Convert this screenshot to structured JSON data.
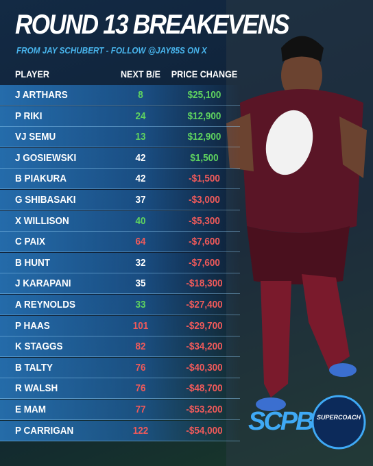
{
  "header": {
    "title": "ROUND 13 BREAKEVENS",
    "subtitle": "FROM JAY SCHUBERT - FOLLOW @JAY85S ON X"
  },
  "table": {
    "columns": [
      "PLAYER",
      "NEXT B/E",
      "PRICE CHANGE"
    ],
    "rows": [
      {
        "player": "J ARTHARS",
        "breakeven": 8,
        "price_change": "$25,100",
        "be_color": "#5fd35f",
        "price_color": "#5fd35f"
      },
      {
        "player": "P RIKI",
        "breakeven": 24,
        "price_change": "$12,900",
        "be_color": "#5fd35f",
        "price_color": "#5fd35f"
      },
      {
        "player": "VJ SEMU",
        "breakeven": 13,
        "price_change": "$12,900",
        "be_color": "#5fd35f",
        "price_color": "#5fd35f"
      },
      {
        "player": "J GOSIEWSKI",
        "breakeven": 42,
        "price_change": "$1,500",
        "be_color": "#ffffff",
        "price_color": "#5fd35f"
      },
      {
        "player": "B PIAKURA",
        "breakeven": 42,
        "price_change": "-$1,500",
        "be_color": "#ffffff",
        "price_color": "#f05a5a"
      },
      {
        "player": "G SHIBASAKI",
        "breakeven": 37,
        "price_change": "-$3,000",
        "be_color": "#ffffff",
        "price_color": "#f05a5a"
      },
      {
        "player": "X WILLISON",
        "breakeven": 40,
        "price_change": "-$5,300",
        "be_color": "#5fd35f",
        "price_color": "#f05a5a"
      },
      {
        "player": "C PAIX",
        "breakeven": 64,
        "price_change": "-$7,600",
        "be_color": "#f05a5a",
        "price_color": "#f05a5a"
      },
      {
        "player": "B HUNT",
        "breakeven": 32,
        "price_change": "-$7,600",
        "be_color": "#ffffff",
        "price_color": "#f05a5a"
      },
      {
        "player": "J KARAPANI",
        "breakeven": 35,
        "price_change": "-$18,300",
        "be_color": "#ffffff",
        "price_color": "#f05a5a"
      },
      {
        "player": "A REYNOLDS",
        "breakeven": 33,
        "price_change": "-$27,400",
        "be_color": "#5fd35f",
        "price_color": "#f05a5a"
      },
      {
        "player": "P HAAS",
        "breakeven": 101,
        "price_change": "-$29,700",
        "be_color": "#f05a5a",
        "price_color": "#f05a5a"
      },
      {
        "player": "K STAGGS",
        "breakeven": 82,
        "price_change": "-$34,200",
        "be_color": "#f05a5a",
        "price_color": "#f05a5a"
      },
      {
        "player": "B TALTY",
        "breakeven": 76,
        "price_change": "-$40,300",
        "be_color": "#f05a5a",
        "price_color": "#f05a5a"
      },
      {
        "player": "R WALSH",
        "breakeven": 76,
        "price_change": "-$48,700",
        "be_color": "#f05a5a",
        "price_color": "#f05a5a"
      },
      {
        "player": "E MAM",
        "breakeven": 77,
        "price_change": "-$53,200",
        "be_color": "#f05a5a",
        "price_color": "#f05a5a"
      },
      {
        "player": "P CARRIGAN",
        "breakeven": 122,
        "price_change": "-$54,000",
        "be_color": "#f05a5a",
        "price_color": "#f05a5a"
      }
    ]
  },
  "logos": {
    "scpb": "SCPB",
    "supercoach": "SUPERCOACH"
  }
}
